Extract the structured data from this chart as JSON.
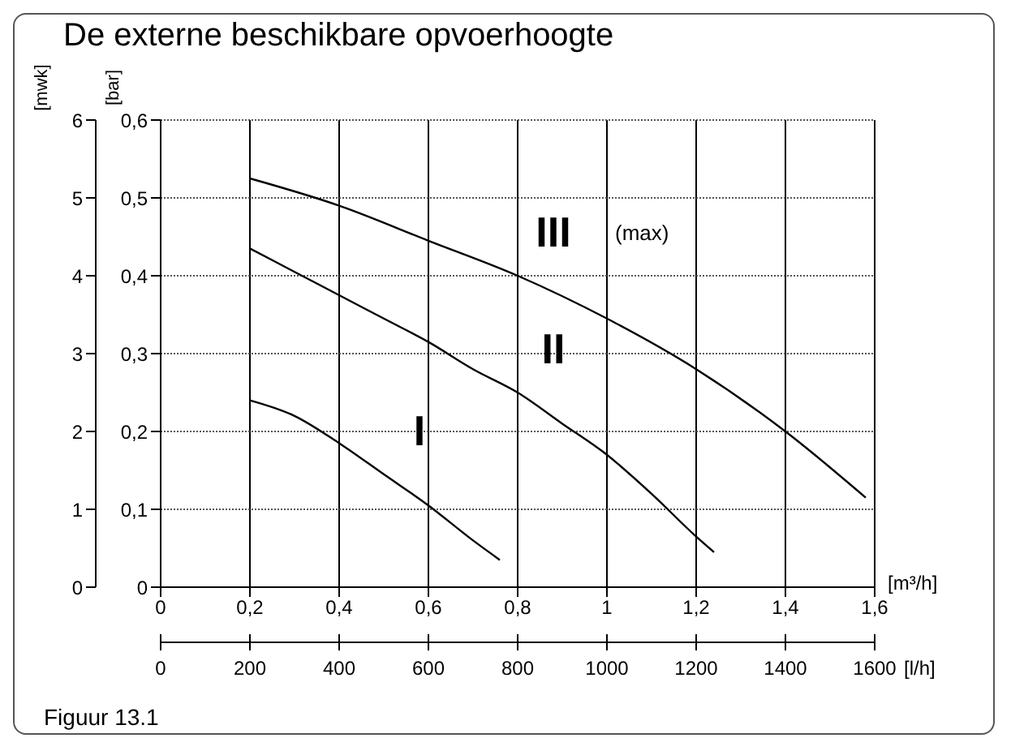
{
  "chart_data": {
    "type": "line",
    "title": "De externe beschikbare opvoerhoogte",
    "xlabel": "[m³/h]",
    "x2label": "[l/h]",
    "ylabel": "[bar]",
    "y2label": "[mwk]",
    "xlim": [
      0,
      1.6
    ],
    "xticks": [
      {
        "value": 0,
        "label": "0"
      },
      {
        "value": 0.2,
        "label": "0,2"
      },
      {
        "value": 0.4,
        "label": "0,4"
      },
      {
        "value": 0.6,
        "label": "0,6"
      },
      {
        "value": 0.8,
        "label": "0,8"
      },
      {
        "value": 1,
        "label": "1"
      },
      {
        "value": 1.2,
        "label": "1,2"
      },
      {
        "value": 1.4,
        "label": "1,4"
      },
      {
        "value": 1.6,
        "label": "1,6"
      }
    ],
    "x2lim": [
      0,
      1600
    ],
    "x2ticks": [
      0,
      200,
      400,
      600,
      800,
      1000,
      1200,
      1400,
      1600
    ],
    "ylim": [
      0,
      0.6
    ],
    "yticks": [
      {
        "value": 0,
        "label": "0"
      },
      {
        "value": 0.1,
        "label": "0,1"
      },
      {
        "value": 0.2,
        "label": "0,2"
      },
      {
        "value": 0.3,
        "label": "0,3"
      },
      {
        "value": 0.4,
        "label": "0,4"
      },
      {
        "value": 0.5,
        "label": "0,5"
      },
      {
        "value": 0.6,
        "label": "0,6"
      }
    ],
    "y2lim": [
      0,
      6
    ],
    "y2ticks": [
      0,
      1,
      2,
      3,
      4,
      5,
      6
    ],
    "grid": true,
    "legend": false,
    "marker": "none",
    "line_style": "solid",
    "series": [
      {
        "name": "I",
        "color": "#000000",
        "x": [
          0.2,
          0.3,
          0.4,
          0.5,
          0.6,
          0.7,
          0.76
        ],
        "values": [
          0.24,
          0.22,
          0.185,
          0.145,
          0.105,
          0.06,
          0.035
        ]
      },
      {
        "name": "II",
        "color": "#000000",
        "x": [
          0.2,
          0.3,
          0.4,
          0.5,
          0.6,
          0.7,
          0.8,
          0.9,
          1.0,
          1.1,
          1.2,
          1.24
        ],
        "values": [
          0.435,
          0.405,
          0.375,
          0.345,
          0.315,
          0.28,
          0.25,
          0.21,
          0.17,
          0.12,
          0.065,
          0.045
        ]
      },
      {
        "name": "III",
        "color": "#000000",
        "x": [
          0.2,
          0.4,
          0.6,
          0.8,
          1.0,
          1.2,
          1.4,
          1.58
        ],
        "values": [
          0.525,
          0.49,
          0.445,
          0.4,
          0.345,
          0.28,
          0.2,
          0.115
        ]
      }
    ],
    "annotations": [
      "(max)",
      "Figuur 13.1"
    ]
  }
}
